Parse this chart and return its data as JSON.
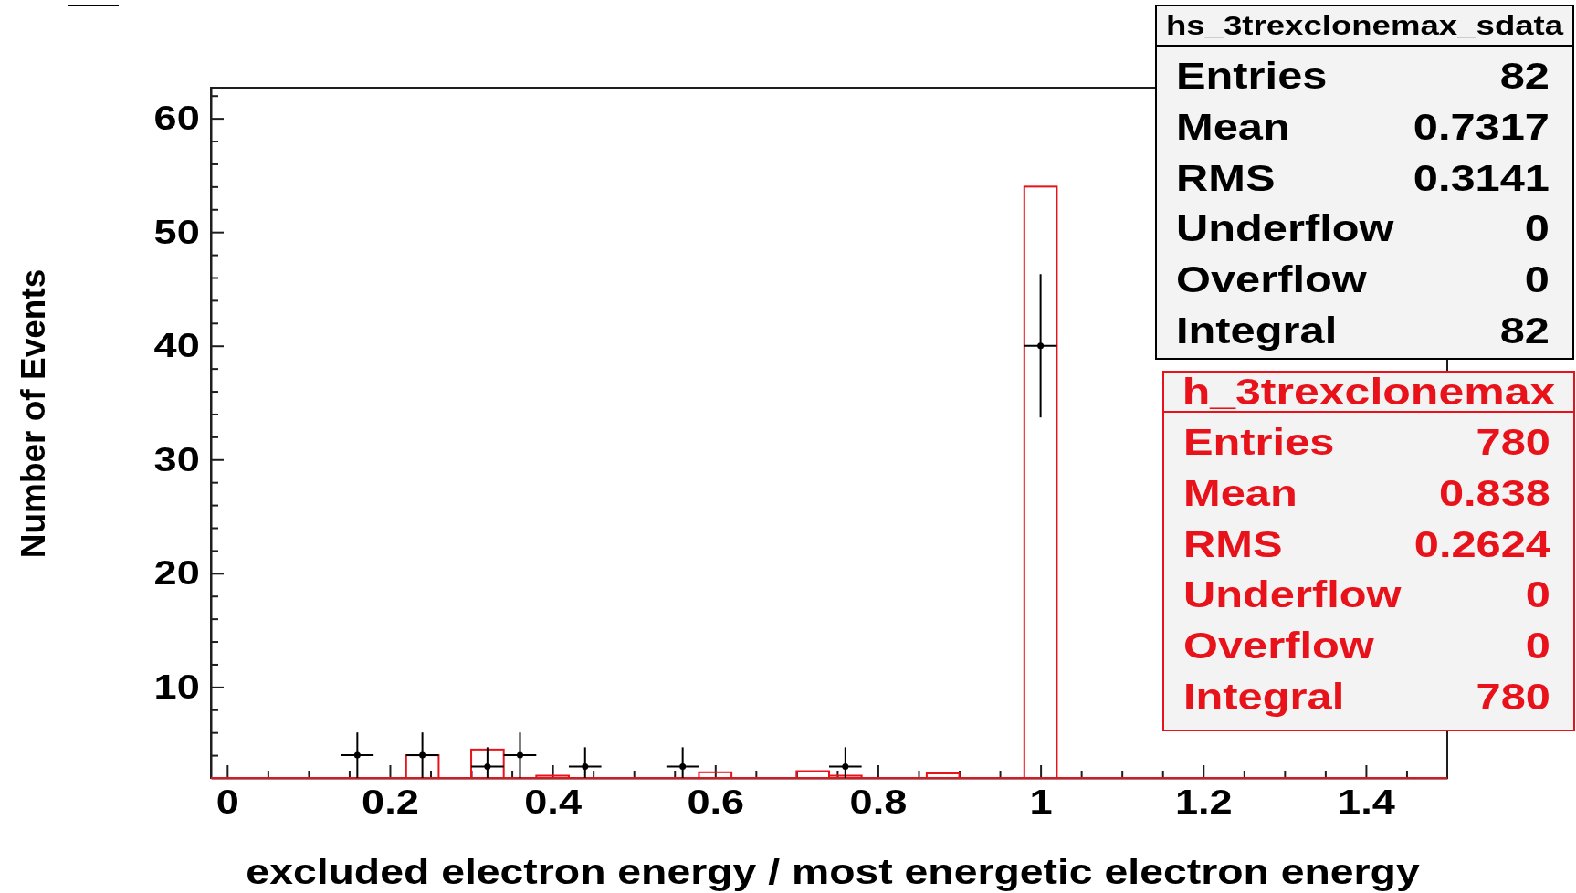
{
  "chart_data": {
    "type": "histogram",
    "xlabel": "excluded electron energy / most energetic electron energy",
    "ylabel": "Number of Events",
    "xlim": [
      -0.02,
      1.5
    ],
    "ylim": [
      2,
      62.7
    ],
    "xticks": [
      0,
      {
        "value": 0.05,
        "label": null
      },
      {
        "value": 0.1,
        "label": null
      },
      {
        "value": 0.15,
        "label": null
      },
      0.2,
      {
        "value": 0.25,
        "label": null
      },
      {
        "value": 0.3,
        "label": null
      },
      {
        "value": 0.35,
        "label": null
      },
      0.4,
      {
        "value": 0.45,
        "label": null
      },
      {
        "value": 0.5,
        "label": null
      },
      {
        "value": 0.55,
        "label": null
      },
      0.6,
      {
        "value": 0.65,
        "label": null
      },
      {
        "value": 0.7,
        "label": null
      },
      {
        "value": 0.75,
        "label": null
      },
      0.8,
      {
        "value": 0.85,
        "label": null
      },
      {
        "value": 0.9,
        "label": null
      },
      {
        "value": 0.95,
        "label": null
      },
      1,
      {
        "value": 1.05,
        "label": null
      },
      {
        "value": 1.1,
        "label": null
      },
      {
        "value": 1.15,
        "label": null
      },
      1.2,
      {
        "value": 1.25,
        "label": null
      },
      {
        "value": 1.3,
        "label": null
      },
      {
        "value": 1.35,
        "label": null
      },
      1.4,
      {
        "value": 1.45,
        "label": null
      }
    ],
    "yticks": [
      {
        "value": 4,
        "label": null
      },
      {
        "value": 6,
        "label": null
      },
      {
        "value": 8,
        "label": null
      },
      10,
      {
        "value": 12,
        "label": null
      },
      {
        "value": 14,
        "label": null
      },
      {
        "value": 16,
        "label": null
      },
      {
        "value": 18,
        "label": null
      },
      20,
      {
        "value": 22,
        "label": null
      },
      {
        "value": 24,
        "label": null
      },
      {
        "value": 26,
        "label": null
      },
      {
        "value": 28,
        "label": null
      },
      30,
      {
        "value": 32,
        "label": null
      },
      {
        "value": 34,
        "label": null
      },
      {
        "value": 36,
        "label": null
      },
      {
        "value": 38,
        "label": null
      },
      40,
      {
        "value": 42,
        "label": null
      },
      {
        "value": 44,
        "label": null
      },
      {
        "value": 46,
        "label": null
      },
      {
        "value": 48,
        "label": null
      },
      50,
      {
        "value": 52,
        "label": null
      },
      {
        "value": 54,
        "label": null
      },
      {
        "value": 56,
        "label": null
      },
      {
        "value": 58,
        "label": null
      },
      60,
      {
        "value": 62,
        "label": null
      }
    ],
    "legend": "top right",
    "series": [
      {
        "name": "hs_3trexclonemax_sdata",
        "type": "scatter",
        "color": "#000000",
        "x": [
          0.16,
          0.24,
          0.32,
          0.36,
          0.44,
          0.56,
          0.76,
          1
        ],
        "values": [
          4,
          4,
          3,
          4,
          3,
          3,
          3,
          40
        ],
        "errors": [
          2,
          2,
          [
            2,
            4.7
          ],
          2,
          [
            2,
            4.7
          ],
          [
            2,
            4.7
          ],
          [
            2,
            4.7
          ],
          6.3
        ],
        "xerrors": [
          0.02,
          0.02,
          0.02,
          0.02,
          0.02,
          0.02,
          0.02,
          0.02
        ]
      },
      {
        "name": "h_3trexclonemax",
        "color": "#e8121a",
        "bins": [
          -0.02,
          0.02,
          0.06,
          0.1,
          0.14,
          0.18,
          0.22,
          0.26,
          0.3,
          0.34,
          0.38,
          0.42,
          0.46,
          0.5,
          0.54,
          0.58,
          0.62,
          0.66,
          0.7,
          0.74,
          0.78,
          0.82,
          0.86,
          0.9,
          0.94,
          0.98,
          1.02,
          1.06,
          1.1,
          1.14,
          1.18,
          1.22,
          1.26,
          1.3,
          1.34,
          1.38,
          1.42,
          1.46,
          1.5
        ],
        "values": [
          null,
          null,
          null,
          null,
          null,
          null,
          4,
          null,
          4.5,
          null,
          2.2,
          null,
          null,
          null,
          null,
          2.5,
          null,
          null,
          2.6,
          2.2,
          null,
          null,
          2.4,
          null,
          null,
          54,
          null,
          null,
          null,
          null,
          null,
          null,
          null,
          null,
          null,
          null,
          null,
          null
        ]
      }
    ],
    "annotations": [
      "Entries 82",
      "Mean 0.7317",
      "RMS 0.3141",
      "Underflow 0",
      "Overflow 0",
      "Integral 82",
      "Entries 780",
      "Mean 0.838",
      "RMS 0.2624",
      "Underflow 0",
      "Overflow 0",
      "Integral 780"
    ]
  }
}
